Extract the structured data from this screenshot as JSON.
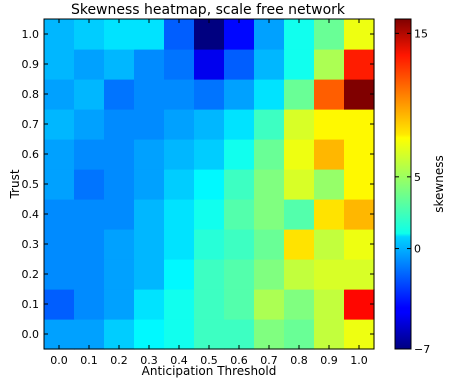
{
  "chart_data": {
    "type": "heatmap",
    "title": "Skewness heatmap, scale free network",
    "xlabel": "Anticipation Threshold",
    "ylabel": "Trust",
    "x": [
      "0.0",
      "0.1",
      "0.2",
      "0.3",
      "0.4",
      "0.5",
      "0.6",
      "0.7",
      "0.8",
      "0.9",
      "1.0"
    ],
    "y": [
      "0.0",
      "0.1",
      "0.2",
      "0.3",
      "0.4",
      "0.5",
      "0.6",
      "0.7",
      "0.8",
      "0.9",
      "1.0"
    ],
    "values": [
      [
        -0.5,
        -0.5,
        0.5,
        1.5,
        2,
        3,
        3,
        4.5,
        4,
        6,
        7
      ],
      [
        -2,
        -1,
        -0.5,
        1,
        2,
        3,
        3.5,
        5.5,
        4.5,
        6,
        13
      ],
      [
        -1,
        -1,
        -0.5,
        0,
        1.5,
        3,
        3.5,
        4.5,
        6,
        6.5,
        6.5
      ],
      [
        -1,
        -1,
        -0.5,
        0,
        1,
        2.5,
        3,
        4,
        8,
        6,
        7
      ],
      [
        -1,
        -1,
        -1,
        0,
        1,
        2,
        3.5,
        4.5,
        3.5,
        8,
        9
      ],
      [
        -0.5,
        -1.5,
        -1,
        -0.5,
        0.5,
        1.5,
        3,
        4.5,
        6.5,
        5,
        7.5
      ],
      [
        -0.5,
        -1,
        -1,
        -0.5,
        0,
        0.5,
        2,
        4,
        7,
        9,
        7.5
      ],
      [
        0,
        -0.5,
        -1,
        -1,
        -0.5,
        0,
        1,
        3,
        6.5,
        7.5,
        7.5
      ],
      [
        -0.5,
        0,
        -1.5,
        -1,
        -1,
        -1.5,
        -0.5,
        1,
        4,
        11,
        16
      ],
      [
        0,
        -0.5,
        0,
        -1,
        -1.5,
        -4.5,
        -2,
        0,
        2,
        5.5,
        12.5
      ],
      [
        0,
        0.5,
        1,
        1,
        -2,
        -7,
        -4,
        -0.5,
        2,
        4,
        7
      ]
    ],
    "colorbar": {
      "label": "skewness",
      "min": -7,
      "max": 16,
      "ticks": [
        15,
        5,
        0,
        -7
      ],
      "tick_labels": [
        "15",
        "5",
        "0",
        "−7"
      ],
      "colormap": "jet"
    }
  }
}
